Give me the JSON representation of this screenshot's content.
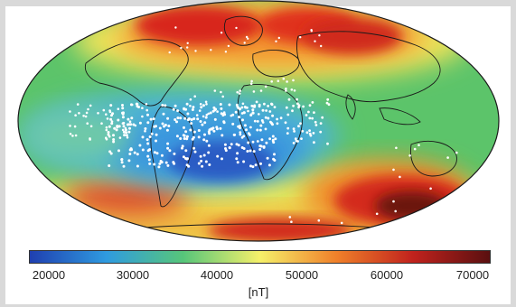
{
  "map": {
    "projection": "Hammer-Aitoff (world)",
    "field_colormap": "jet-like, blue (low) to dark red (high)"
  },
  "colorbar": {
    "ticks": [
      "20000",
      "30000",
      "40000",
      "50000",
      "60000",
      "70000"
    ],
    "unit": "[nT]",
    "colors": [
      "#1f3fb0",
      "#2f9be0",
      "#57c67a",
      "#f5f06a",
      "#f0802a",
      "#c0221d",
      "#5a1010"
    ]
  }
}
